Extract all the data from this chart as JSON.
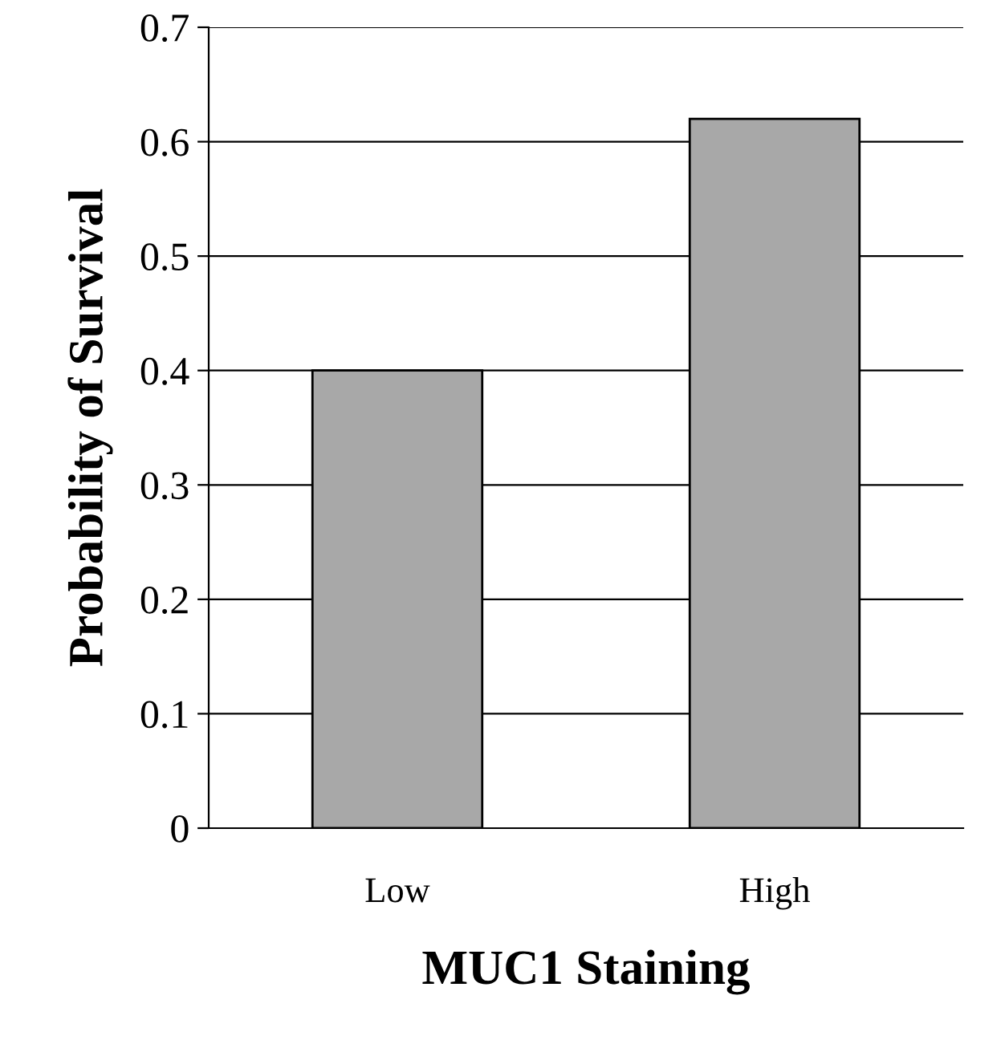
{
  "chart_data": {
    "type": "bar",
    "xlabel": "MUC1 Staining",
    "ylabel": "Probability of Survival",
    "categories": [
      "Low",
      "High"
    ],
    "values": [
      0.4,
      0.62
    ],
    "color": "#a8a8a8",
    "ylim": [
      0,
      0.7
    ],
    "yticks": [
      0,
      0.1,
      0.2,
      0.3,
      0.4,
      0.5,
      0.6,
      0.7
    ],
    "grid": "y",
    "legend": false
  }
}
